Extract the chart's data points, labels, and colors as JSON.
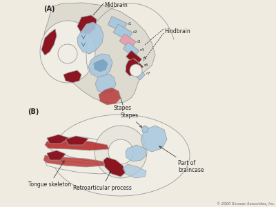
{
  "bg_color": "#f0ebe0",
  "panel_A_label": "(A)",
  "panel_B_label": "(B)",
  "label_midbrain": "Midbrain",
  "label_hindbrain": "Hindbrain",
  "label_stapes": "Stapes",
  "label_tongue": "Tongue skeleton",
  "label_retroarticular": "Retroarticular process",
  "label_part_braincase": "Part of\nbraincase",
  "label_copyright": "© 2000 Sinauer Associates, Inc.",
  "rhombomere_labels": [
    "r1",
    "r2",
    "r3",
    "r4",
    "r5",
    "r6",
    "r7"
  ],
  "color_light_blue": "#a8c8e0",
  "color_dark_red": "#8b1520",
  "color_mid_red": "#b83030",
  "color_pink": "#e8a0b0",
  "color_outline": "#999999",
  "color_light_gray": "#dddad0",
  "color_white": "#f0ede5",
  "color_blue_mid": "#6898b8",
  "color_text": "#222222",
  "color_gray_blue": "#c8d8e8"
}
